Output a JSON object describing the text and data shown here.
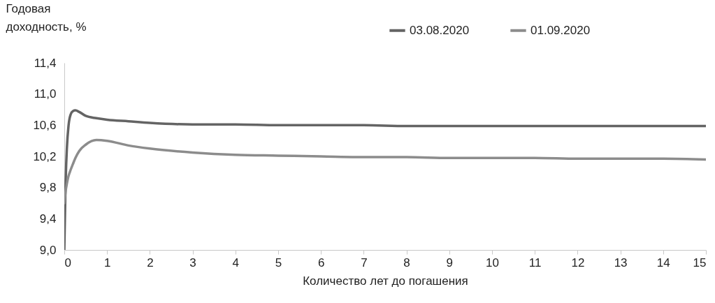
{
  "chart_data": {
    "type": "line",
    "ylabel": "Годовая доходность, %",
    "xlabel": "Количество лет до погашения",
    "x": [
      0,
      0.03,
      0.06,
      0.1,
      0.15,
      0.2,
      0.26,
      0.35,
      0.5,
      0.75,
      1,
      1.5,
      2,
      3,
      4,
      5,
      6,
      7,
      8,
      9,
      10,
      11,
      12,
      13,
      14,
      15
    ],
    "series": [
      {
        "name": "03.08.2020",
        "color": "#646464",
        "values": [
          9.0,
          9.85,
          10.3,
          10.6,
          10.74,
          10.78,
          10.79,
          10.77,
          10.72,
          10.69,
          10.67,
          10.65,
          10.63,
          10.61,
          10.61,
          10.6,
          10.6,
          10.6,
          10.59,
          10.59,
          10.59,
          10.59,
          10.59,
          10.59,
          10.59,
          10.59
        ]
      },
      {
        "name": "01.09.2020",
        "color": "#8c8c8c",
        "values": [
          9.6,
          9.75,
          9.85,
          9.95,
          10.03,
          10.1,
          10.18,
          10.27,
          10.35,
          10.41,
          10.4,
          10.34,
          10.3,
          10.25,
          10.22,
          10.21,
          10.2,
          10.19,
          10.19,
          10.18,
          10.18,
          10.18,
          10.17,
          10.17,
          10.17,
          10.16
        ]
      }
    ],
    "xlim": [
      0,
      15
    ],
    "xticks": [
      0,
      1,
      2,
      3,
      4,
      5,
      6,
      7,
      8,
      9,
      10,
      11,
      12,
      13,
      14,
      15
    ],
    "ylim": [
      9.0,
      11.4
    ],
    "yticks": [
      {
        "value": 9.0,
        "label": "9,0"
      },
      {
        "value": 9.4,
        "label": "9,4"
      },
      {
        "value": 9.8,
        "label": "9,8"
      },
      {
        "value": 10.2,
        "label": "10,2"
      },
      {
        "value": 10.6,
        "label": "10,6"
      },
      {
        "value": 11.0,
        "label": "11,0"
      },
      {
        "value": 11.4,
        "label": "11,4"
      }
    ],
    "grid": false,
    "legend": "top",
    "marker": "none",
    "line_style": "solid"
  }
}
